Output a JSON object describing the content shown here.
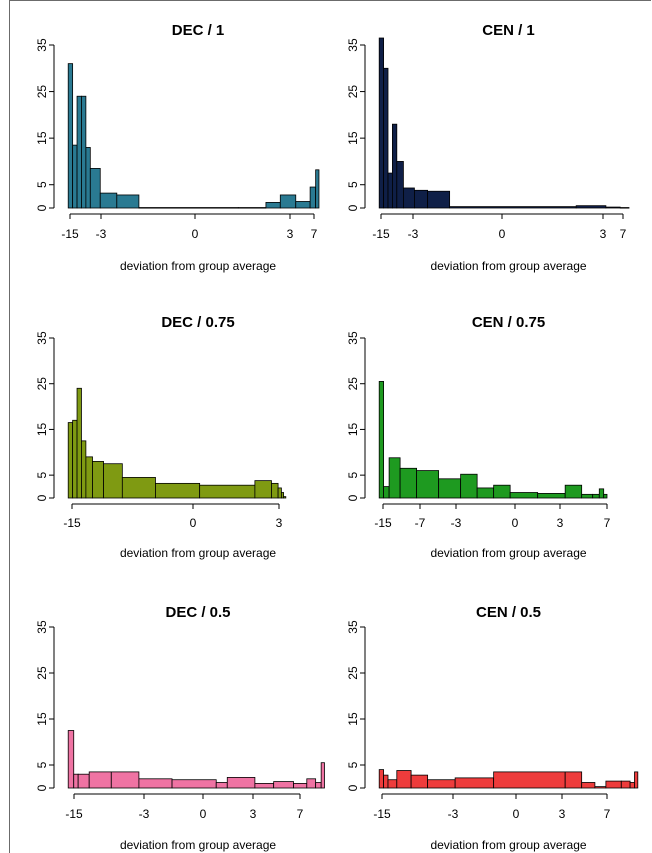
{
  "figure": {
    "colors": {
      "DEC_1": "#2a7a92",
      "CEN_1": "#0f1f47",
      "DEC_0.75": "#7f9a12",
      "CEN_0.75": "#1e9a20",
      "DEC_0.5": "#ef73a3",
      "CEN_0.5": "#ee3c3c"
    }
  },
  "chart_data": [
    {
      "type": "bar",
      "title": "DEC / 1",
      "xlabel": "deviation from group average",
      "ylabel": "",
      "ylim": [
        0,
        35
      ],
      "yticks": [
        0,
        5,
        15,
        25,
        35
      ],
      "xtick_labels": [
        "-15",
        "-3",
        "0",
        "3",
        "7"
      ],
      "bins": [
        {
          "x0": -15.4,
          "x1": -15.0,
          "value": 31
        },
        {
          "x0": -15.0,
          "x1": -14.6,
          "value": 13.5
        },
        {
          "x0": -14.6,
          "x1": -14.2,
          "value": 24
        },
        {
          "x0": -14.2,
          "x1": -13.8,
          "value": 24
        },
        {
          "x0": -13.8,
          "x1": -13.4,
          "value": 13
        },
        {
          "x0": -13.4,
          "x1": -12.5,
          "value": 8.5
        },
        {
          "x0": -12.5,
          "x1": -11.0,
          "value": 3.2
        },
        {
          "x0": -11.0,
          "x1": -9.0,
          "value": 2.8
        },
        {
          "x0": -9.0,
          "x1": 0,
          "value": 0.1
        },
        {
          "x0": 0,
          "x1": 2.5,
          "value": 0.1
        },
        {
          "x0": 2.5,
          "x1": 3.8,
          "value": 1.2
        },
        {
          "x0": 3.8,
          "x1": 5.2,
          "value": 2.8
        },
        {
          "x0": 5.2,
          "x1": 6.5,
          "value": 1.4
        },
        {
          "x0": 6.5,
          "x1": 7.0,
          "value": 4.5
        },
        {
          "x0": 7.0,
          "x1": 7.3,
          "value": 8.2
        }
      ]
    },
    {
      "type": "bar",
      "title": "CEN / 1",
      "xlabel": "deviation from group average",
      "ylabel": "",
      "ylim": [
        0,
        35
      ],
      "yticks": [
        0,
        5,
        15,
        25,
        35
      ],
      "xtick_labels": [
        "-15",
        "-3",
        "0",
        "3",
        "7"
      ],
      "bins": [
        {
          "x0": -15.4,
          "x1": -15.0,
          "value": 36.5
        },
        {
          "x0": -15.0,
          "x1": -14.6,
          "value": 30
        },
        {
          "x0": -14.6,
          "x1": -14.2,
          "value": 7.5
        },
        {
          "x0": -14.2,
          "x1": -13.8,
          "value": 18
        },
        {
          "x0": -13.8,
          "x1": -13.2,
          "value": 10
        },
        {
          "x0": -13.2,
          "x1": -12.2,
          "value": 4.3
        },
        {
          "x0": -12.2,
          "x1": -11.0,
          "value": 3.8
        },
        {
          "x0": -11.0,
          "x1": -9.0,
          "value": 3.6
        },
        {
          "x0": -9.0,
          "x1": 2.5,
          "value": 0.3
        },
        {
          "x0": 2.5,
          "x1": 5.2,
          "value": 0.5
        },
        {
          "x0": 5.2,
          "x1": 6.5,
          "value": 0.2
        },
        {
          "x0": 6.5,
          "x1": 7.3,
          "value": 0.1
        }
      ]
    },
    {
      "type": "bar",
      "title": "DEC / 0.75",
      "xlabel": "deviation from group average",
      "ylabel": "",
      "ylim": [
        0,
        35
      ],
      "yticks": [
        0,
        5,
        15,
        25,
        35
      ],
      "xtick_labels": [
        "-15",
        "0",
        "3"
      ],
      "bins": [
        {
          "x0": -15.4,
          "x1": -15.0,
          "value": 16.5
        },
        {
          "x0": -15.0,
          "x1": -14.6,
          "value": 17
        },
        {
          "x0": -14.6,
          "x1": -14.2,
          "value": 24
        },
        {
          "x0": -14.2,
          "x1": -13.8,
          "value": 12.5
        },
        {
          "x0": -13.8,
          "x1": -13.2,
          "value": 9
        },
        {
          "x0": -13.2,
          "x1": -12.2,
          "value": 8
        },
        {
          "x0": -12.2,
          "x1": -10.5,
          "value": 7.5
        },
        {
          "x0": -10.5,
          "x1": -7.5,
          "value": 4.5
        },
        {
          "x0": -7.5,
          "x1": -3.5,
          "value": 3.2
        },
        {
          "x0": -3.5,
          "x1": 1.5,
          "value": 2.8
        },
        {
          "x0": 1.5,
          "x1": 3.0,
          "value": 3.8
        },
        {
          "x0": 3.0,
          "x1": 3.6,
          "value": 3.2
        },
        {
          "x0": 3.6,
          "x1": 3.9,
          "value": 2.2
        },
        {
          "x0": 3.9,
          "x1": 4.1,
          "value": 1.2
        },
        {
          "x0": 4.1,
          "x1": 4.3,
          "value": 0.3
        }
      ]
    },
    {
      "type": "bar",
      "title": "CEN / 0.75",
      "xlabel": "deviation from group average",
      "ylabel": "",
      "ylim": [
        0,
        35
      ],
      "yticks": [
        0,
        5,
        15,
        25,
        35
      ],
      "xtick_labels": [
        "-15",
        "-7",
        "-3",
        "0",
        "3",
        "7"
      ],
      "bins": [
        {
          "x0": -15.4,
          "x1": -15.0,
          "value": 25.5
        },
        {
          "x0": -15.0,
          "x1": -14.5,
          "value": 2.5
        },
        {
          "x0": -14.5,
          "x1": -13.5,
          "value": 8.8
        },
        {
          "x0": -13.5,
          "x1": -12.0,
          "value": 6.5
        },
        {
          "x0": -12.0,
          "x1": -10.0,
          "value": 6
        },
        {
          "x0": -10.0,
          "x1": -8.0,
          "value": 4.2
        },
        {
          "x0": -8.0,
          "x1": -6.5,
          "value": 5.2
        },
        {
          "x0": -6.5,
          "x1": -5.0,
          "value": 2.2
        },
        {
          "x0": -5.0,
          "x1": -3.5,
          "value": 2.8
        },
        {
          "x0": -3.5,
          "x1": -1.0,
          "value": 1.2
        },
        {
          "x0": -1.0,
          "x1": 1.5,
          "value": 1.0
        },
        {
          "x0": 1.5,
          "x1": 3.0,
          "value": 2.8
        },
        {
          "x0": 3.0,
          "x1": 4.0,
          "value": 0.8
        },
        {
          "x0": 4.0,
          "x1": 4.6,
          "value": 0.8
        },
        {
          "x0": 4.6,
          "x1": 5.0,
          "value": 2.0
        },
        {
          "x0": 5.0,
          "x1": 5.3,
          "value": 0.8
        }
      ]
    },
    {
      "type": "bar",
      "title": "DEC / 0.5",
      "xlabel": "deviation from group average",
      "ylabel": "",
      "ylim": [
        0,
        35
      ],
      "yticks": [
        0,
        5,
        15,
        25,
        35
      ],
      "xtick_labels": [
        "-15",
        "-3",
        "0",
        "3",
        "7"
      ],
      "bins": [
        {
          "x0": -15.4,
          "x1": -14.9,
          "value": 12.5
        },
        {
          "x0": -14.9,
          "x1": -14.5,
          "value": 3
        },
        {
          "x0": -14.5,
          "x1": -13.5,
          "value": 3
        },
        {
          "x0": -13.5,
          "x1": -11.5,
          "value": 3.5
        },
        {
          "x0": -11.5,
          "x1": -9.0,
          "value": 3.5
        },
        {
          "x0": -9.0,
          "x1": -6.0,
          "value": 2
        },
        {
          "x0": -6.0,
          "x1": -2.0,
          "value": 1.8
        },
        {
          "x0": -2.0,
          "x1": -1.0,
          "value": 1.2
        },
        {
          "x0": -1.0,
          "x1": 1.5,
          "value": 2.3
        },
        {
          "x0": 1.5,
          "x1": 3.2,
          "value": 1.0
        },
        {
          "x0": 3.2,
          "x1": 5.0,
          "value": 1.4
        },
        {
          "x0": 5.0,
          "x1": 6.2,
          "value": 1.0
        },
        {
          "x0": 6.2,
          "x1": 7.0,
          "value": 2.0
        },
        {
          "x0": 7.0,
          "x1": 7.5,
          "value": 1.2
        },
        {
          "x0": 7.5,
          "x1": 7.8,
          "value": 5.5
        }
      ]
    },
    {
      "type": "bar",
      "title": "CEN / 0.5",
      "xlabel": "deviation from group average",
      "ylabel": "",
      "ylim": [
        0,
        35
      ],
      "yticks": [
        0,
        5,
        15,
        25,
        35
      ],
      "xtick_labels": [
        "-15",
        "-3",
        "0",
        "3",
        "7"
      ],
      "bins": [
        {
          "x0": -15.4,
          "x1": -15.0,
          "value": 4
        },
        {
          "x0": -15.0,
          "x1": -14.6,
          "value": 2.8
        },
        {
          "x0": -14.6,
          "x1": -13.8,
          "value": 1.8
        },
        {
          "x0": -13.8,
          "x1": -12.5,
          "value": 3.8
        },
        {
          "x0": -12.5,
          "x1": -11.0,
          "value": 2.8
        },
        {
          "x0": -11.0,
          "x1": -8.5,
          "value": 1.8
        },
        {
          "x0": -8.5,
          "x1": -5.0,
          "value": 2.2
        },
        {
          "x0": -5.0,
          "x1": 1.5,
          "value": 3.5
        },
        {
          "x0": 1.5,
          "x1": 3.0,
          "value": 3.5
        },
        {
          "x0": 3.0,
          "x1": 4.2,
          "value": 1.2
        },
        {
          "x0": 4.2,
          "x1": 5.2,
          "value": 0.3
        },
        {
          "x0": 5.2,
          "x1": 6.6,
          "value": 1.5
        },
        {
          "x0": 6.6,
          "x1": 7.4,
          "value": 1.5
        },
        {
          "x0": 7.4,
          "x1": 7.8,
          "value": 1.2
        },
        {
          "x0": 7.8,
          "x1": 8.1,
          "value": 3.5
        }
      ]
    }
  ]
}
